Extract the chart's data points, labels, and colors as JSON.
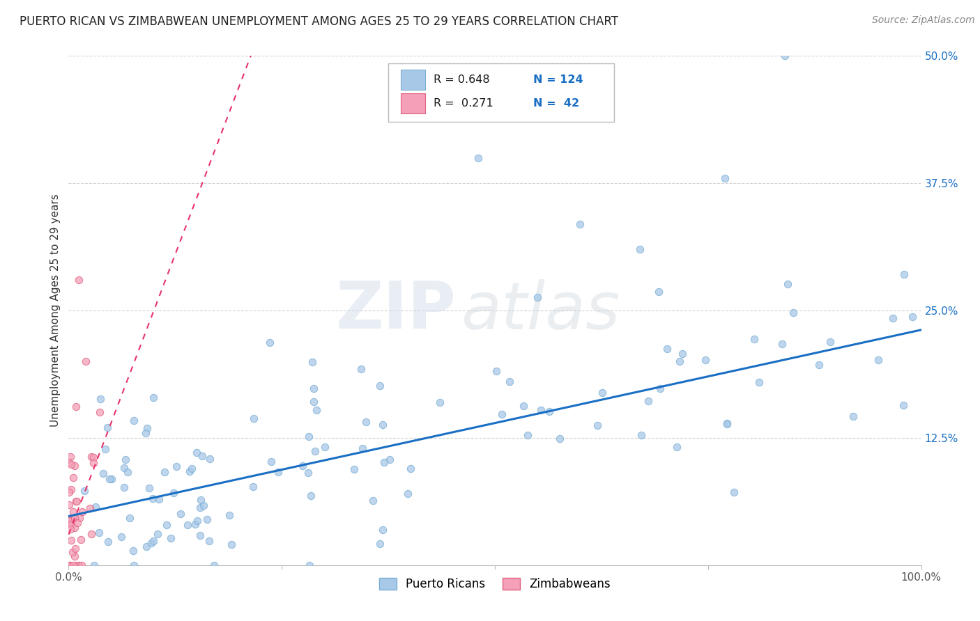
{
  "title": "PUERTO RICAN VS ZIMBABWEAN UNEMPLOYMENT AMONG AGES 25 TO 29 YEARS CORRELATION CHART",
  "source": "Source: ZipAtlas.com",
  "ylabel": "Unemployment Among Ages 25 to 29 years",
  "xlim": [
    0.0,
    1.0
  ],
  "ylim": [
    0.0,
    0.5
  ],
  "xticks": [
    0.0,
    0.25,
    0.5,
    0.75,
    1.0
  ],
  "xticklabels": [
    "0.0%",
    "",
    "",
    "",
    "100.0%"
  ],
  "yticks": [
    0.0,
    0.125,
    0.25,
    0.375,
    0.5
  ],
  "yticklabels_right": [
    "",
    "12.5%",
    "25.0%",
    "37.5%",
    "50.0%"
  ],
  "blue_color": "#a8c8e8",
  "blue_edge": "#7aafd4",
  "pink_color": "#f4a0b8",
  "pink_edge": "#e06080",
  "line_blue": "#1a6fc4",
  "line_pink": "#e8336a",
  "R_blue": 0.648,
  "N_blue": 124,
  "R_pink": 0.271,
  "N_pink": 42,
  "watermark_zip": "ZIP",
  "watermark_atlas": "atlas",
  "legend_label_blue": "Puerto Ricans",
  "legend_label_pink": "Zimbabweans",
  "background_color": "#ffffff",
  "grid_color": "#cccccc",
  "title_fontsize": 12,
  "source_fontsize": 10,
  "axis_label_fontsize": 11,
  "tick_fontsize": 11,
  "legend_fontsize": 12,
  "seed": 99,
  "blue_slope_fit": 0.183,
  "blue_intercept_fit": 0.048,
  "pink_slope_fit": 2.2,
  "pink_intercept_fit": 0.03
}
